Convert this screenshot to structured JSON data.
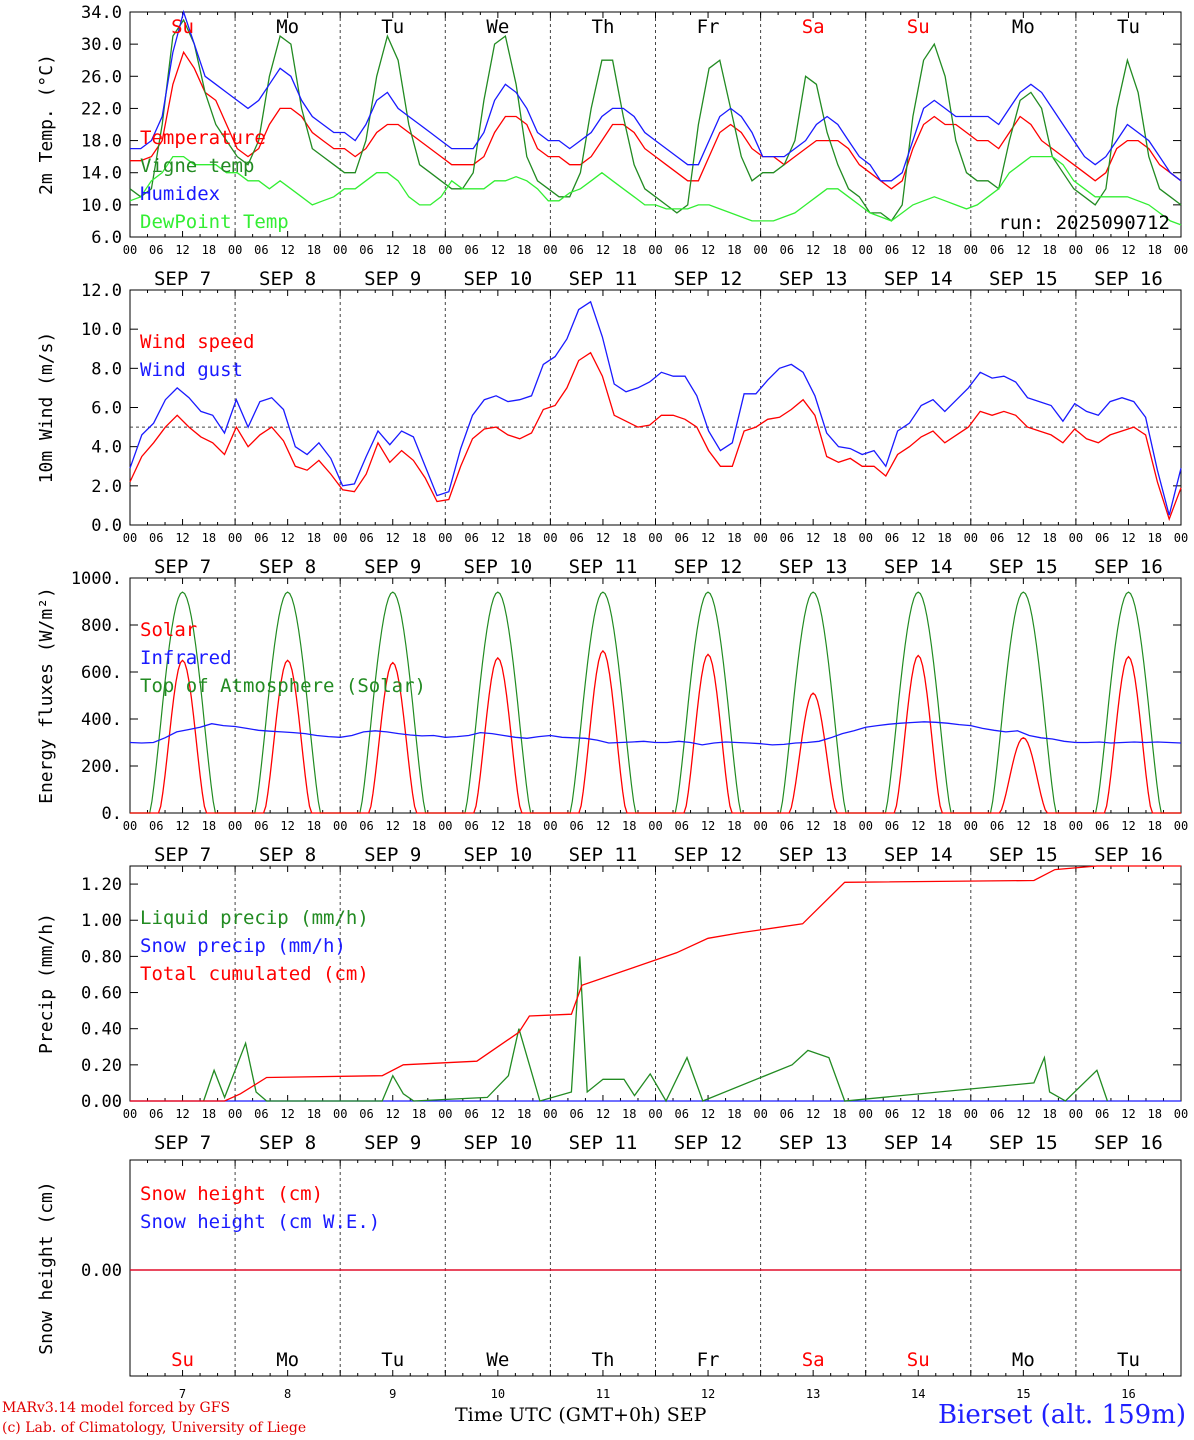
{
  "colors": {
    "red": "#ff0000",
    "green": "#228b22",
    "blue": "#1a1aff",
    "lightgreen": "#33ee33",
    "grid": "#444444"
  },
  "days": {
    "labels": [
      "Su",
      "Mo",
      "Tu",
      "We",
      "Th",
      "Fr",
      "Sa",
      "Su",
      "Mo",
      "Tu"
    ],
    "dates": [
      "SEP  7",
      "SEP  8",
      "SEP  9",
      "SEP 10",
      "SEP 11",
      "SEP 12",
      "SEP 13",
      "SEP 14",
      "SEP 15",
      "SEP 16"
    ],
    "numbers": [
      "7",
      "8",
      "9",
      "10",
      "11",
      "12",
      "13",
      "14",
      "15",
      "16"
    ],
    "weekend": [
      true,
      false,
      false,
      false,
      false,
      false,
      true,
      true,
      false,
      false
    ]
  },
  "hour_ticks": [
    "00",
    "06",
    "12",
    "18"
  ],
  "hour_end": "00",
  "footer": {
    "credit_line1": "MARv3.14 model forced by GFS",
    "credit_line2": "(c) Lab. of Climatology, University of Liege",
    "xaxis_title": "Time UTC (GMT+0h) SEP",
    "station": "Bierset (alt. 159m)"
  },
  "chart_data": [
    {
      "id": "temp",
      "type": "line",
      "ylabel": "2m Temp. (°C)",
      "ylim": [
        6.0,
        34.0
      ],
      "yticks": [
        "6.0",
        "10.0",
        "14.0",
        "18.0",
        "22.0",
        "26.0",
        "30.0",
        "34.0"
      ],
      "annotation": "run: 2025090712",
      "series": [
        {
          "name": "Temperature",
          "color": "red",
          "day": [
            15.5,
            15.5,
            16,
            18,
            25,
            29,
            27,
            24,
            23,
            20,
            17,
            16,
            17,
            20,
            22,
            22,
            21,
            19,
            18,
            17,
            17,
            16,
            17,
            19,
            20,
            20,
            19,
            18,
            17,
            16,
            15,
            15,
            15,
            16,
            19,
            21,
            21,
            20,
            17,
            16,
            16,
            15,
            15,
            16,
            18,
            20,
            20,
            19,
            17,
            16,
            15,
            14,
            13,
            13,
            16,
            19,
            20,
            19,
            17,
            16,
            16,
            15,
            16,
            17,
            18,
            18,
            18,
            17,
            15,
            14,
            13,
            12,
            13,
            17,
            20,
            21,
            20,
            20,
            19,
            18,
            18,
            17,
            19,
            21,
            20,
            18,
            17,
            16,
            15,
            14,
            13,
            14,
            17,
            18,
            18,
            17,
            15,
            14,
            13
          ]
        },
        {
          "name": "Vigne temp",
          "color": "green",
          "day": [
            12,
            11,
            12,
            20,
            31,
            33,
            30,
            24,
            20,
            18,
            16,
            15,
            18,
            26,
            31,
            30,
            22,
            17,
            16,
            15,
            14,
            14,
            18,
            26,
            31,
            28,
            20,
            15,
            14,
            13,
            12,
            12,
            14,
            23,
            30,
            31,
            25,
            16,
            13,
            12,
            11,
            11,
            14,
            22,
            28,
            28,
            21,
            15,
            12,
            11,
            10,
            9,
            10,
            20,
            27,
            28,
            22,
            16,
            13,
            14,
            14,
            15,
            18,
            26,
            25,
            19,
            15,
            12,
            11,
            9,
            9,
            8,
            10,
            21,
            28,
            30,
            26,
            18,
            14,
            13,
            13,
            12,
            18,
            23,
            24,
            22,
            16,
            14,
            12,
            11,
            10,
            12,
            22,
            28,
            24,
            16,
            12,
            11,
            10
          ]
        },
        {
          "name": "Humidex",
          "color": "blue",
          "day": [
            17,
            17,
            18,
            21,
            29,
            34,
            30,
            26,
            25,
            24,
            23,
            22,
            23,
            25,
            27,
            26,
            23,
            21,
            20,
            19,
            19,
            18,
            20,
            23,
            24,
            22,
            21,
            20,
            19,
            18,
            17,
            17,
            17,
            19,
            23,
            25,
            24,
            22,
            19,
            18,
            18,
            17,
            18,
            19,
            21,
            22,
            22,
            21,
            19,
            18,
            17,
            16,
            15,
            15,
            18,
            21,
            22,
            21,
            19,
            16,
            16,
            16,
            17,
            18,
            20,
            21,
            20,
            18,
            16,
            15,
            13,
            13,
            14,
            18,
            22,
            23,
            22,
            21,
            21,
            21,
            21,
            20,
            22,
            24,
            25,
            24,
            22,
            20,
            18,
            16,
            15,
            16,
            18,
            20,
            19,
            18,
            16,
            14,
            13
          ]
        },
        {
          "name": "DewPoint Temp",
          "color": "lightgreen",
          "day": [
            10.5,
            11,
            13,
            14,
            16,
            16,
            15,
            15,
            15,
            14,
            14,
            13,
            13,
            12,
            13,
            12,
            11,
            10,
            10.5,
            11,
            12,
            12,
            13,
            14,
            14,
            13,
            11,
            10,
            10,
            11,
            13,
            12,
            12,
            12,
            13,
            13,
            13.5,
            13,
            12,
            10.5,
            10.5,
            11.5,
            12,
            13,
            14,
            13,
            12,
            11,
            10,
            10,
            9.5,
            9.5,
            9.5,
            10,
            10,
            9.5,
            9,
            8.5,
            8,
            8,
            8,
            8.5,
            9,
            10,
            11,
            12,
            12,
            11,
            10,
            9,
            8.5,
            8,
            9,
            10,
            10.5,
            11,
            10.5,
            10,
            9.5,
            10,
            11,
            12,
            14,
            15,
            16,
            16,
            16,
            15,
            13,
            12,
            11,
            11,
            11,
            11,
            10.5,
            10,
            9,
            8,
            7.5
          ]
        }
      ]
    },
    {
      "id": "wind",
      "type": "line",
      "ylabel": "10m Wind (m/s)",
      "ylim": [
        0.0,
        12.0
      ],
      "yticks": [
        "0.0",
        "2.0",
        "4.0",
        "6.0",
        "8.0",
        "10.0",
        "12.0"
      ],
      "reference_line": 5.0,
      "series": [
        {
          "name": "Wind speed",
          "color": "red",
          "day": [
            2.2,
            3.5,
            4.2,
            5.0,
            5.6,
            5.0,
            4.5,
            4.2,
            3.6,
            5.0,
            4.0,
            4.6,
            5.0,
            4.3,
            3.0,
            2.8,
            3.3,
            2.6,
            1.8,
            1.7,
            2.6,
            4.2,
            3.2,
            3.8,
            3.3,
            2.4,
            1.2,
            1.3,
            3.0,
            4.4,
            4.9,
            5.0,
            4.6,
            4.4,
            4.7,
            5.9,
            6.1,
            7.0,
            8.4,
            8.8,
            7.6,
            5.6,
            5.3,
            5.0,
            5.1,
            5.6,
            5.6,
            5.4,
            5.0,
            3.8,
            3.0,
            3.0,
            4.8,
            5.0,
            5.4,
            5.5,
            5.9,
            6.4,
            5.6,
            3.5,
            3.2,
            3.4,
            3.0,
            3.0,
            2.5,
            3.6,
            4.0,
            4.5,
            4.8,
            4.2,
            4.6,
            5.0,
            5.8,
            5.6,
            5.8,
            5.6,
            5.0,
            4.8,
            4.6,
            4.2,
            4.9,
            4.4,
            4.2,
            4.6,
            4.8,
            5.0,
            4.6,
            2.2,
            0.3,
            1.9
          ]
        },
        {
          "name": "Wind gust",
          "color": "blue",
          "day": [
            2.9,
            4.6,
            5.2,
            6.4,
            7.0,
            6.5,
            5.8,
            5.6,
            4.7,
            6.4,
            5.0,
            6.3,
            6.5,
            5.9,
            4.0,
            3.6,
            4.2,
            3.4,
            2.0,
            2.1,
            3.5,
            4.8,
            4.1,
            4.8,
            4.5,
            3.0,
            1.5,
            1.7,
            3.9,
            5.6,
            6.4,
            6.6,
            6.3,
            6.4,
            6.6,
            8.2,
            8.6,
            9.5,
            11.0,
            11.4,
            9.6,
            7.2,
            6.8,
            7.0,
            7.3,
            7.8,
            7.6,
            7.6,
            6.6,
            4.8,
            3.8,
            4.2,
            6.7,
            6.7,
            7.4,
            8.0,
            8.2,
            7.8,
            6.6,
            4.7,
            4.0,
            3.9,
            3.6,
            3.8,
            3.0,
            4.8,
            5.2,
            6.1,
            6.4,
            5.8,
            6.4,
            7.0,
            7.8,
            7.5,
            7.6,
            7.3,
            6.5,
            6.3,
            6.1,
            5.3,
            6.2,
            5.8,
            5.6,
            6.3,
            6.5,
            6.3,
            5.5,
            2.8,
            0.5,
            2.9
          ]
        }
      ]
    },
    {
      "id": "energy",
      "type": "line",
      "ylabel": "Energy fluxes (W/m²)",
      "ylim": [
        0,
        1000
      ],
      "yticks": [
        "0.",
        "200.",
        "400.",
        "600.",
        "800.",
        "1000."
      ],
      "series": [
        {
          "name": "Solar",
          "color": "red",
          "peaks": [
            650,
            650,
            640,
            660,
            690,
            675,
            510,
            670,
            320,
            665
          ]
        },
        {
          "name": "Infrared",
          "color": "blue",
          "day": [
            300,
            298,
            300,
            320,
            345,
            355,
            365,
            380,
            372,
            368,
            360,
            352,
            348,
            345,
            342,
            338,
            330,
            325,
            322,
            330,
            345,
            350,
            345,
            338,
            332,
            328,
            330,
            322,
            325,
            330,
            342,
            338,
            330,
            322,
            318,
            325,
            330,
            322,
            320,
            318,
            310,
            298,
            300,
            302,
            305,
            300,
            300,
            305,
            300,
            290,
            298,
            302,
            300,
            298,
            295,
            290,
            292,
            298,
            300,
            305,
            320,
            338,
            350,
            365,
            372,
            378,
            382,
            385,
            388,
            386,
            382,
            376,
            372,
            360,
            352,
            345,
            350,
            330,
            320,
            315,
            305,
            300,
            300,
            302,
            298,
            300,
            302,
            300,
            302,
            300,
            298
          ]
        },
        {
          "name": "Top of Atmosphere (Solar)",
          "color": "green",
          "peak": 940
        }
      ]
    },
    {
      "id": "precip",
      "type": "line",
      "ylabel": "Precip (mm/h)",
      "ylim": [
        0.0,
        1.3
      ],
      "yticks": [
        "0.00",
        "0.20",
        "0.40",
        "0.60",
        "0.80",
        "1.00",
        "1.20"
      ],
      "series": [
        {
          "name": "Liquid precip (mm/h)",
          "color": "green",
          "points": [
            [
              0.7,
              0
            ],
            [
              0.8,
              0.17
            ],
            [
              0.9,
              0.02
            ],
            [
              1.1,
              0.32
            ],
            [
              1.2,
              0.05
            ],
            [
              1.3,
              0
            ],
            [
              2.4,
              0
            ],
            [
              2.5,
              0.14
            ],
            [
              2.6,
              0.04
            ],
            [
              2.7,
              0
            ],
            [
              3.4,
              0.02
            ],
            [
              3.6,
              0.14
            ],
            [
              3.7,
              0.4
            ],
            [
              3.8,
              0.2
            ],
            [
              3.9,
              0
            ],
            [
              4.2,
              0.05
            ],
            [
              4.28,
              0.8
            ],
            [
              4.35,
              0.05
            ],
            [
              4.5,
              0.12
            ],
            [
              4.7,
              0.12
            ],
            [
              4.8,
              0.03
            ],
            [
              4.95,
              0.15
            ],
            [
              5.1,
              0
            ],
            [
              5.3,
              0.24
            ],
            [
              5.45,
              0
            ],
            [
              6.3,
              0.2
            ],
            [
              6.45,
              0.28
            ],
            [
              6.65,
              0.24
            ],
            [
              6.8,
              0
            ],
            [
              8.6,
              0.1
            ],
            [
              8.7,
              0.24
            ],
            [
              8.75,
              0.05
            ],
            [
              8.9,
              0
            ],
            [
              9.2,
              0.17
            ],
            [
              9.3,
              0
            ]
          ]
        },
        {
          "name": "Snow precip (mm/h)",
          "color": "blue",
          "baseline": 0
        },
        {
          "name": "Total cumulated (cm)",
          "color": "red",
          "points": [
            [
              0,
              0
            ],
            [
              0.9,
              0
            ],
            [
              1.05,
              0.04
            ],
            [
              1.3,
              0.13
            ],
            [
              2.4,
              0.14
            ],
            [
              2.6,
              0.2
            ],
            [
              3.3,
              0.22
            ],
            [
              3.7,
              0.38
            ],
            [
              3.8,
              0.47
            ],
            [
              4.2,
              0.48
            ],
            [
              4.3,
              0.64
            ],
            [
              4.8,
              0.74
            ],
            [
              5.2,
              0.82
            ],
            [
              5.5,
              0.9
            ],
            [
              5.8,
              0.93
            ],
            [
              6.4,
              0.98
            ],
            [
              6.8,
              1.21
            ],
            [
              8.6,
              1.22
            ],
            [
              8.8,
              1.28
            ],
            [
              9.2,
              1.3
            ],
            [
              10,
              1.3
            ]
          ]
        }
      ]
    },
    {
      "id": "snow",
      "type": "line",
      "ylabel": "Snow height (cm)",
      "yticks": [
        "0.00"
      ],
      "series": [
        {
          "name": "Snow height (cm)",
          "color": "red",
          "constant": 0
        },
        {
          "name": "Snow height (cm W.E.)",
          "color": "blue",
          "constant": 0
        }
      ]
    }
  ]
}
